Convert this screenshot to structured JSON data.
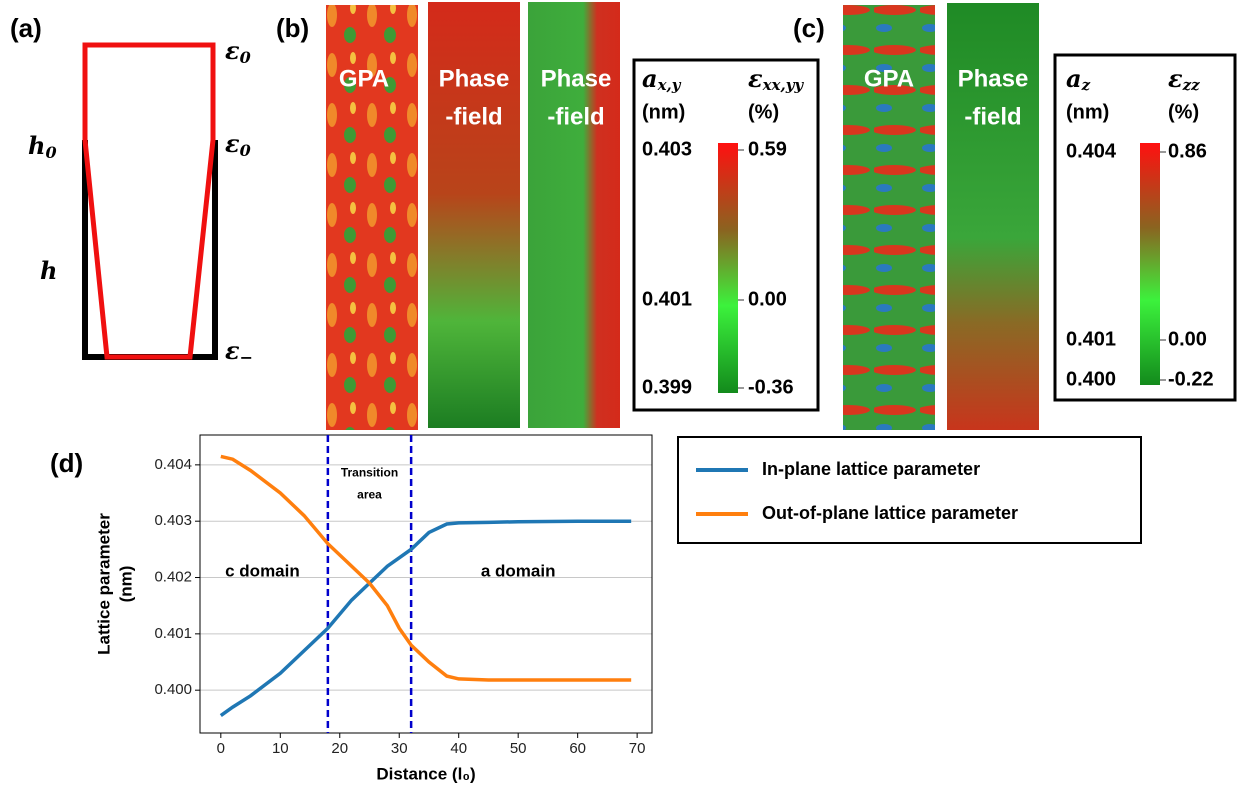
{
  "panel_a": {
    "label": "(a)",
    "left_labels": [
      {
        "symbol": "h",
        "subscript": "0"
      },
      {
        "symbol": "h",
        "subscript": ""
      }
    ],
    "right_labels": [
      {
        "symbol": "ε",
        "subscript": "0"
      },
      {
        "symbol": "ε",
        "subscript": "0"
      },
      {
        "symbol": "ε",
        "subscript": "−"
      }
    ]
  },
  "panel_b": {
    "label": "(b)",
    "image_labels": [
      [
        "GPA"
      ],
      [
        "Phase",
        "-field"
      ],
      [
        "Phase",
        "-field"
      ]
    ],
    "colorbar": {
      "left_title": {
        "symbol": "a",
        "subscript": "x,y",
        "unit": "(nm)"
      },
      "right_title": {
        "symbol": "ε",
        "subscript": "xx,yy",
        "unit": "(%)"
      },
      "left_ticks": [
        "0.403",
        "0.401",
        "0.399"
      ],
      "right_ticks": [
        "0.59",
        "0.00",
        "-0.36"
      ]
    }
  },
  "panel_c": {
    "label": "(c)",
    "image_labels": [
      [
        "GPA"
      ],
      [
        "Phase",
        "-field"
      ]
    ],
    "colorbar": {
      "left_title": {
        "symbol": "a",
        "subscript": "z",
        "unit": "(nm)"
      },
      "right_title": {
        "symbol": "ε",
        "subscript": "zz",
        "unit": "(%)"
      },
      "left_ticks": [
        "0.404",
        "0.401",
        "0.400"
      ],
      "right_ticks": [
        "0.86",
        "0.00",
        "-0.22"
      ]
    }
  },
  "panel_d": {
    "label": "(d)"
  },
  "chart_data": {
    "type": "line",
    "x_label": "Distance (l₀)",
    "y_label": [
      "Lattice parameter",
      "(nm)"
    ],
    "x": [
      0,
      2,
      5,
      10,
      14,
      18,
      22,
      25,
      28,
      30,
      32,
      35,
      38,
      40,
      45,
      50,
      60,
      69
    ],
    "series": [
      {
        "name": "In-plane lattice parameter",
        "color": "#1f77b4",
        "values": [
          0.39955,
          0.3997,
          0.3999,
          0.4003,
          0.4007,
          0.4011,
          0.4016,
          0.4019,
          0.4022,
          0.40235,
          0.4025,
          0.4028,
          0.40295,
          0.40297,
          0.40298,
          0.40299,
          0.403,
          0.403
        ]
      },
      {
        "name": "Out-of-plane lattice parameter",
        "color": "#ff7f0e",
        "values": [
          0.40415,
          0.4041,
          0.4039,
          0.4035,
          0.4031,
          0.4026,
          0.4022,
          0.4019,
          0.4015,
          0.4011,
          0.4008,
          0.4005,
          0.40025,
          0.4002,
          0.40018,
          0.40018,
          0.40018,
          0.40018
        ]
      }
    ],
    "xlim": [
      -3.5,
      72.5
    ],
    "xticks": [
      0,
      10,
      20,
      30,
      40,
      50,
      60,
      70
    ],
    "ylim": [
      0.39924,
      0.40453
    ],
    "yticks": [
      {
        "value": 0.4,
        "label": "0.400"
      },
      0.401,
      0.402,
      0.403,
      0.404
    ],
    "grid": "y",
    "vlines": [
      18,
      32
    ],
    "vline_color": "#0000cc",
    "annotations": [
      {
        "text": [
          "Transition",
          "area"
        ],
        "x": 25,
        "y": 0.40385
      },
      {
        "text": [
          "c domain"
        ],
        "x": 7,
        "y": 0.4021
      },
      {
        "text": [
          "a domain"
        ],
        "x": 50,
        "y": 0.4021
      }
    ],
    "legend": "outside-right"
  }
}
